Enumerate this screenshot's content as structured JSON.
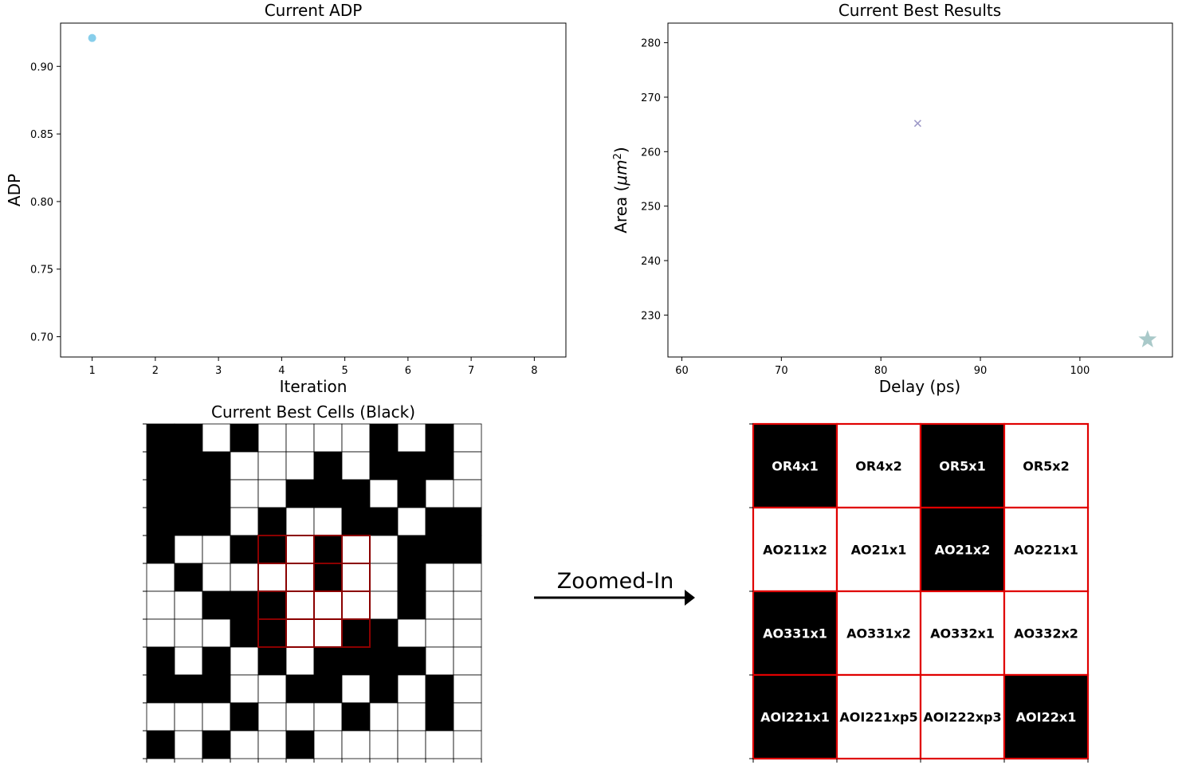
{
  "chart_data": [
    {
      "type": "scatter",
      "title": "Current ADP",
      "xlabel": "Iteration",
      "ylabel": "ADP",
      "xlim": [
        0.5,
        8.5
      ],
      "ylim": [
        0.685,
        0.932
      ],
      "xticks": [
        1,
        2,
        3,
        4,
        5,
        6,
        7,
        8
      ],
      "yticks": [
        0.7,
        0.75,
        0.8,
        0.85,
        0.9
      ],
      "ytick_labels": [
        "0.70",
        "0.75",
        "0.80",
        "0.85",
        "0.90"
      ],
      "grid": false,
      "points": [
        {
          "x": 1,
          "y": 0.921,
          "marker": "circle",
          "color": "#87CEEB"
        }
      ]
    },
    {
      "type": "scatter",
      "title": "Current Best Results",
      "xlabel": "Delay (ps)",
      "ylabel_text": "Area (",
      "ylabel_unit": "μm",
      "ylabel_exp": "2",
      "ylabel_close": ")",
      "xlim": [
        58.6,
        109.3
      ],
      "ylim": [
        222.3,
        283.6
      ],
      "xticks": [
        60,
        70,
        80,
        90,
        100
      ],
      "yticks": [
        230,
        240,
        250,
        260,
        270,
        280
      ],
      "grid": false,
      "points": [
        {
          "x": 83.7,
          "y": 265.2,
          "marker": "x",
          "color": "#9E9AC8"
        },
        {
          "x": 106.8,
          "y": 225.5,
          "marker": "star",
          "color": "#A9C9C9"
        }
      ]
    },
    {
      "type": "heatmap",
      "title": "Current Best Cells (Black)",
      "colors": {
        "on": "#000000",
        "off": "#ffffff",
        "highlight": "#8B0000"
      },
      "highlight": {
        "row": 4,
        "col": 4,
        "rows": 4,
        "cols": 4
      },
      "grid": [
        [
          1,
          1,
          0,
          1,
          0,
          0,
          0,
          0,
          1,
          0,
          1,
          0
        ],
        [
          1,
          1,
          1,
          0,
          0,
          0,
          1,
          0,
          1,
          1,
          1,
          0
        ],
        [
          1,
          1,
          1,
          0,
          0,
          1,
          1,
          1,
          0,
          1,
          0,
          0
        ],
        [
          1,
          1,
          1,
          0,
          1,
          0,
          0,
          1,
          1,
          0,
          1,
          1
        ],
        [
          1,
          0,
          0,
          1,
          1,
          0,
          1,
          0,
          0,
          1,
          1,
          1
        ],
        [
          0,
          1,
          0,
          0,
          0,
          0,
          1,
          0,
          0,
          1,
          0,
          0
        ],
        [
          0,
          0,
          1,
          1,
          1,
          0,
          0,
          0,
          0,
          1,
          0,
          0
        ],
        [
          0,
          0,
          0,
          1,
          1,
          0,
          0,
          1,
          1,
          0,
          0,
          0
        ],
        [
          1,
          0,
          1,
          0,
          1,
          0,
          1,
          1,
          1,
          1,
          0,
          0
        ],
        [
          1,
          1,
          1,
          0,
          0,
          1,
          1,
          0,
          1,
          0,
          1,
          0
        ],
        [
          0,
          0,
          0,
          1,
          0,
          0,
          0,
          1,
          0,
          0,
          1,
          0
        ],
        [
          1,
          0,
          1,
          0,
          0,
          1,
          0,
          0,
          0,
          0,
          0,
          0
        ]
      ]
    },
    {
      "type": "table",
      "title": "",
      "border_color": "#E00000",
      "cells": [
        [
          {
            "label": "OR4x1",
            "on": true
          },
          {
            "label": "OR4x2",
            "on": false
          },
          {
            "label": "OR5x1",
            "on": true
          },
          {
            "label": "OR5x2",
            "on": false
          }
        ],
        [
          {
            "label": "AO211x2",
            "on": false
          },
          {
            "label": "AO21x1",
            "on": false
          },
          {
            "label": "AO21x2",
            "on": true
          },
          {
            "label": "AO221x1",
            "on": false
          }
        ],
        [
          {
            "label": "AO331x1",
            "on": true
          },
          {
            "label": "AO331x2",
            "on": false
          },
          {
            "label": "AO332x1",
            "on": false
          },
          {
            "label": "AO332x2",
            "on": false
          }
        ],
        [
          {
            "label": "AOI221x1",
            "on": true
          },
          {
            "label": "AOI221xp5",
            "on": false
          },
          {
            "label": "AOI222xp3",
            "on": false
          },
          {
            "label": "AOI22x1",
            "on": true
          }
        ]
      ]
    }
  ],
  "annotation": {
    "label": "Zoomed-In"
  }
}
